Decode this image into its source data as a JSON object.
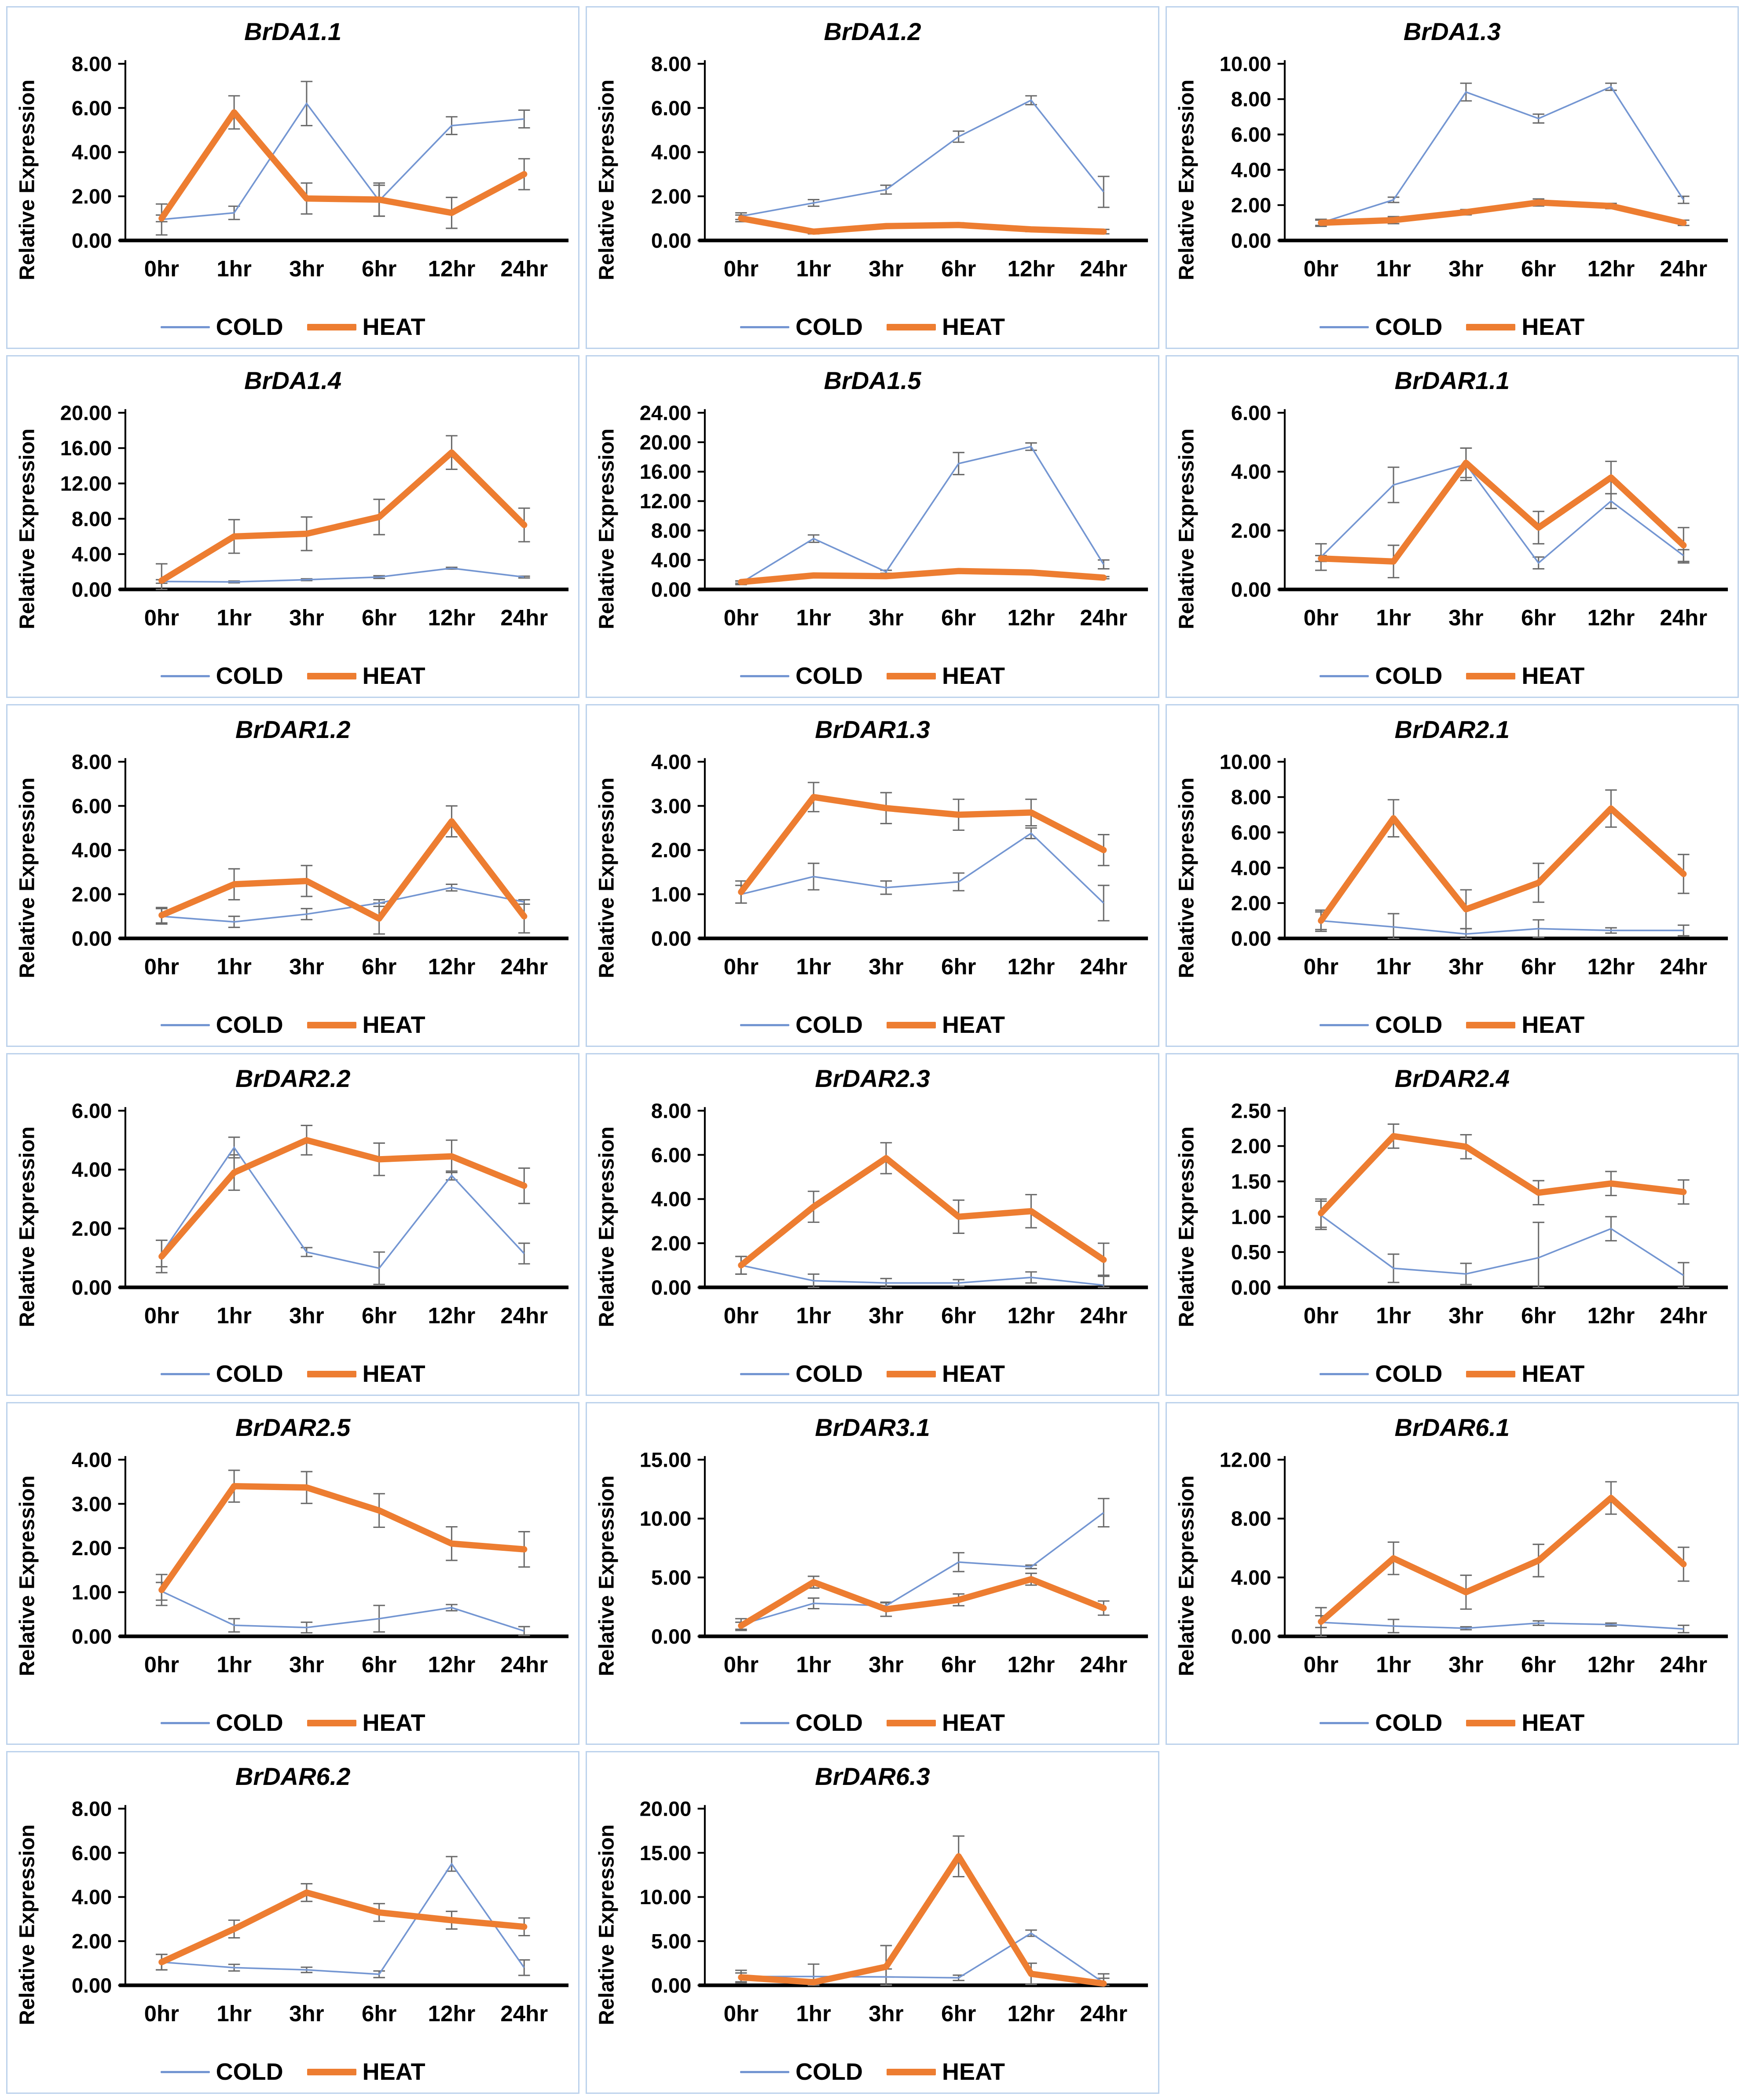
{
  "page": {
    "background": "#ffffff",
    "panel_border": "#bcd2ec"
  },
  "colors": {
    "cold": "#7496d2",
    "heat": "#ed7d31",
    "error_bar": "#6b6b6b",
    "axis": "#000000"
  },
  "legend": {
    "cold_label": "COLD",
    "heat_label": "HEAT"
  },
  "axis": {
    "ylabel": "Relative Expression",
    "categories": [
      "0hr",
      "1hr",
      "3hr",
      "6hr",
      "12hr",
      "24hr"
    ],
    "tick_format_decimals": 2
  },
  "chart_data": {
    "type": "line",
    "categories": [
      "0hr",
      "1hr",
      "3hr",
      "6hr",
      "12hr",
      "24hr"
    ],
    "ylabel": "Relative Expression",
    "legend_position": "bottom",
    "grid": false,
    "charts": [
      {
        "title": "BrDA1.1",
        "ymax": 8,
        "ystep": 2,
        "cold": {
          "values": [
            0.95,
            1.25,
            6.2,
            1.8,
            5.2,
            5.5
          ],
          "errors": [
            0.7,
            0.3,
            1.0,
            0.7,
            0.4,
            0.4
          ]
        },
        "heat": {
          "values": [
            1.0,
            5.8,
            1.9,
            1.85,
            1.25,
            3.0
          ],
          "errors": [
            0.15,
            0.75,
            0.7,
            0.75,
            0.7,
            0.7
          ]
        }
      },
      {
        "title": "BrDA1.2",
        "ymax": 8,
        "ystep": 2,
        "cold": {
          "values": [
            1.1,
            1.7,
            2.3,
            4.7,
            6.35,
            2.2
          ],
          "errors": [
            0.15,
            0.15,
            0.2,
            0.25,
            0.2,
            0.7
          ]
        },
        "heat": {
          "values": [
            1.0,
            0.4,
            0.65,
            0.7,
            0.5,
            0.4
          ],
          "errors": [
            0.15,
            0.1,
            0.08,
            0.1,
            0.1,
            0.1
          ]
        }
      },
      {
        "title": "BrDA1.3",
        "ymax": 10,
        "ystep": 2,
        "cold": {
          "values": [
            1.0,
            2.3,
            8.4,
            6.9,
            8.7,
            2.3
          ],
          "errors": [
            0.2,
            0.15,
            0.5,
            0.25,
            0.2,
            0.2
          ]
        },
        "heat": {
          "values": [
            1.0,
            1.15,
            1.6,
            2.15,
            1.95,
            1.0
          ],
          "errors": [
            0.15,
            0.2,
            0.15,
            0.2,
            0.15,
            0.15
          ]
        }
      },
      {
        "title": "BrDA1.4",
        "ymax": 20,
        "ystep": 4,
        "cold": {
          "values": [
            0.9,
            0.85,
            1.1,
            1.4,
            2.4,
            1.4
          ],
          "errors": [
            0.2,
            0.1,
            0.1,
            0.15,
            0.1,
            0.1
          ]
        },
        "heat": {
          "values": [
            1.0,
            6.0,
            6.3,
            8.2,
            15.5,
            7.3
          ],
          "errors": [
            1.9,
            1.9,
            1.9,
            2.0,
            1.9,
            1.9
          ]
        }
      },
      {
        "title": "BrDA1.5",
        "ymax": 24,
        "ystep": 4,
        "cold": {
          "values": [
            0.9,
            6.9,
            2.4,
            17.1,
            19.4,
            3.4
          ],
          "errors": [
            0.25,
            0.5,
            0.2,
            1.5,
            0.5,
            0.6
          ]
        },
        "heat": {
          "values": [
            1.0,
            1.9,
            1.8,
            2.5,
            2.3,
            1.6
          ],
          "errors": [
            0.15,
            0.15,
            0.15,
            0.15,
            0.15,
            0.15
          ]
        }
      },
      {
        "title": "BrDAR1.1",
        "ymax": 6,
        "ystep": 2,
        "cold": {
          "values": [
            1.1,
            3.55,
            4.25,
            0.9,
            3.0,
            1.15
          ],
          "errors": [
            0.45,
            0.6,
            0.55,
            0.2,
            0.25,
            0.2
          ]
        },
        "heat": {
          "values": [
            1.05,
            0.95,
            4.3,
            2.1,
            3.8,
            1.5
          ],
          "errors": [
            0.1,
            0.55,
            0.5,
            0.55,
            0.55,
            0.6
          ]
        }
      },
      {
        "title": "BrDAR1.2",
        "ymax": 8,
        "ystep": 2,
        "cold": {
          "values": [
            1.0,
            0.75,
            1.1,
            1.6,
            2.3,
            1.65
          ],
          "errors": [
            0.35,
            0.25,
            0.25,
            0.15,
            0.15,
            0.1
          ]
        },
        "heat": {
          "values": [
            1.05,
            2.45,
            2.6,
            0.9,
            5.3,
            1.0
          ],
          "errors": [
            0.35,
            0.7,
            0.7,
            0.7,
            0.7,
            0.75
          ]
        }
      },
      {
        "title": "BrDAR1.3",
        "ymax": 4,
        "ystep": 1,
        "cold": {
          "values": [
            1.0,
            1.4,
            1.15,
            1.28,
            2.38,
            0.8
          ],
          "errors": [
            0.2,
            0.3,
            0.15,
            0.2,
            0.12,
            0.4
          ]
        },
        "heat": {
          "values": [
            1.05,
            3.2,
            2.95,
            2.8,
            2.85,
            2.0
          ],
          "errors": [
            0.25,
            0.33,
            0.35,
            0.35,
            0.3,
            0.35
          ]
        }
      },
      {
        "title": "BrDAR2.1",
        "ymax": 10,
        "ystep": 2,
        "cold": {
          "values": [
            1.0,
            0.65,
            0.25,
            0.55,
            0.45,
            0.45
          ],
          "errors": [
            0.6,
            0.75,
            0.3,
            0.5,
            0.15,
            0.3
          ]
        },
        "heat": {
          "values": [
            1.0,
            6.8,
            1.65,
            3.15,
            7.35,
            3.65
          ],
          "errors": [
            0.5,
            1.05,
            1.1,
            1.1,
            1.05,
            1.1
          ]
        }
      },
      {
        "title": "BrDAR2.2",
        "ymax": 6,
        "ystep": 2,
        "cold": {
          "values": [
            1.15,
            4.75,
            1.2,
            0.65,
            3.8,
            1.15
          ],
          "errors": [
            0.45,
            0.35,
            0.15,
            0.55,
            0.15,
            0.35
          ]
        },
        "heat": {
          "values": [
            1.05,
            3.9,
            5.0,
            4.35,
            4.45,
            3.45
          ],
          "errors": [
            0.55,
            0.6,
            0.5,
            0.55,
            0.55,
            0.6
          ]
        }
      },
      {
        "title": "BrDAR2.3",
        "ymax": 8,
        "ystep": 2,
        "cold": {
          "values": [
            1.0,
            0.3,
            0.2,
            0.2,
            0.45,
            0.1
          ],
          "errors": [
            0.4,
            0.3,
            0.2,
            0.15,
            0.25,
            0.45
          ]
        },
        "heat": {
          "values": [
            1.0,
            3.65,
            5.85,
            3.2,
            3.45,
            1.25
          ],
          "errors": [
            0.4,
            0.7,
            0.7,
            0.75,
            0.75,
            0.75
          ]
        }
      },
      {
        "title": "BrDAR2.4",
        "ymax": 2.5,
        "ystep": 0.5,
        "cold": {
          "values": [
            1.02,
            0.27,
            0.19,
            0.42,
            0.83,
            0.17
          ],
          "errors": [
            0.2,
            0.2,
            0.15,
            0.5,
            0.17,
            0.18
          ]
        },
        "heat": {
          "values": [
            1.05,
            2.14,
            1.99,
            1.34,
            1.47,
            1.35
          ],
          "errors": [
            0.2,
            0.17,
            0.17,
            0.17,
            0.17,
            0.17
          ]
        }
      },
      {
        "title": "BrDAR2.5",
        "ymax": 4,
        "ystep": 1,
        "cold": {
          "values": [
            1.02,
            0.25,
            0.2,
            0.4,
            0.65,
            0.12
          ],
          "errors": [
            0.2,
            0.15,
            0.12,
            0.3,
            0.07,
            0.1
          ]
        },
        "heat": {
          "values": [
            1.05,
            3.4,
            3.37,
            2.85,
            2.1,
            1.97
          ],
          "errors": [
            0.35,
            0.36,
            0.36,
            0.38,
            0.38,
            0.4
          ]
        }
      },
      {
        "title": "BrDAR3.1",
        "ymax": 15,
        "ystep": 5,
        "cold": {
          "values": [
            1.0,
            2.8,
            2.6,
            6.3,
            5.9,
            10.5
          ],
          "errors": [
            0.5,
            0.45,
            0.25,
            0.8,
            0.15,
            1.2
          ]
        },
        "heat": {
          "values": [
            0.9,
            4.6,
            2.3,
            3.1,
            4.85,
            2.4
          ],
          "errors": [
            0.3,
            0.5,
            0.6,
            0.5,
            0.5,
            0.6
          ]
        }
      },
      {
        "title": "BrDAR6.1",
        "ymax": 12,
        "ystep": 4,
        "cold": {
          "values": [
            0.95,
            0.7,
            0.55,
            0.9,
            0.8,
            0.5
          ],
          "errors": [
            1.0,
            0.45,
            0.1,
            0.15,
            0.1,
            0.25
          ]
        },
        "heat": {
          "values": [
            1.0,
            5.3,
            3.0,
            5.15,
            9.4,
            4.9
          ],
          "errors": [
            0.4,
            1.1,
            1.15,
            1.1,
            1.1,
            1.15
          ]
        }
      },
      {
        "title": "BrDAR6.2",
        "ymax": 8,
        "ystep": 2,
        "cold": {
          "values": [
            1.05,
            0.8,
            0.7,
            0.5,
            5.5,
            0.8
          ],
          "errors": [
            0.35,
            0.15,
            0.12,
            0.15,
            0.33,
            0.35
          ]
        },
        "heat": {
          "values": [
            1.05,
            2.55,
            4.2,
            3.3,
            2.95,
            2.65
          ],
          "errors": [
            0.35,
            0.4,
            0.4,
            0.4,
            0.4,
            0.4
          ]
        }
      },
      {
        "title": "BrDAR6.3",
        "ymax": 20,
        "ystep": 5,
        "cold": {
          "values": [
            1.0,
            1.0,
            0.95,
            0.85,
            5.9,
            0.3
          ],
          "errors": [
            0.7,
            1.4,
            0.9,
            0.3,
            0.35,
            0.5
          ]
        },
        "heat": {
          "values": [
            0.9,
            0.35,
            2.1,
            14.6,
            1.3,
            0.2
          ],
          "errors": [
            0.5,
            0.3,
            2.4,
            2.3,
            1.2,
            1.1
          ]
        }
      }
    ]
  }
}
